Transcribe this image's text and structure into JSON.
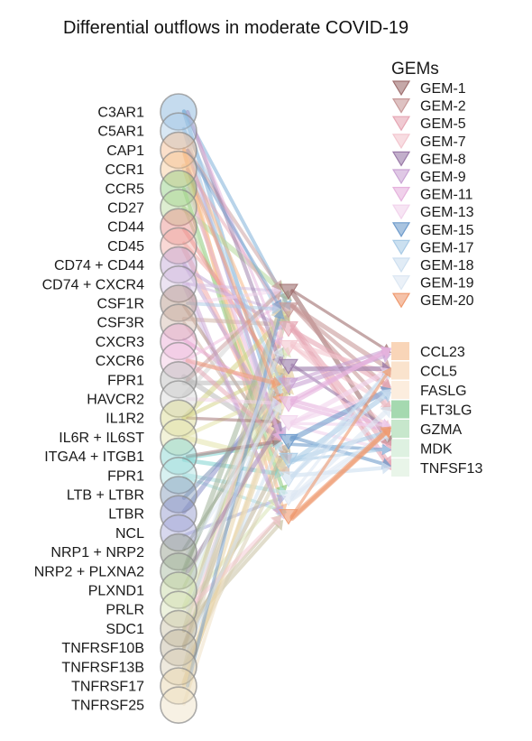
{
  "title": "Differential outflows in moderate COVID-19",
  "legend_title": "GEMs",
  "receptors": [
    {
      "name": "C3AR1",
      "color": "#7fb0d9"
    },
    {
      "name": "C5AR1",
      "color": "#a8c9e6"
    },
    {
      "name": "CAP1",
      "color": "#f5b889"
    },
    {
      "name": "CCR1",
      "color": "#f7c894"
    },
    {
      "name": "CCR5",
      "color": "#8ccb7c"
    },
    {
      "name": "CD27",
      "color": "#b5d99a"
    },
    {
      "name": "CD44",
      "color": "#e88a86"
    },
    {
      "name": "CD45",
      "color": "#f2aaa5"
    },
    {
      "name": "CD74 + CD44",
      "color": "#c0a5d4"
    },
    {
      "name": "CD74 + CXCR4",
      "color": "#d4c0e3"
    },
    {
      "name": "CSF1R",
      "color": "#b39283"
    },
    {
      "name": "CSF3R",
      "color": "#d1b5a8"
    },
    {
      "name": "CXCR3",
      "color": "#e9a6d2"
    },
    {
      "name": "CXCR6",
      "color": "#f2c3e0"
    },
    {
      "name": "FPR1",
      "color": "#b9b9b9"
    },
    {
      "name": "HAVCR2",
      "color": "#d6d6d6"
    },
    {
      "name": "IL1R2",
      "color": "#d6d68a"
    },
    {
      "name": "IL6R + IL6ST",
      "color": "#e3e3aa"
    },
    {
      "name": "ITGA4 + ITGB1",
      "color": "#7fd3cf"
    },
    {
      "name": "FPR1",
      "color": "#a9dfe0"
    },
    {
      "name": "LTB + LTBR",
      "color": "#7f96b8"
    },
    {
      "name": "LTBR",
      "color": "#8c92c9"
    },
    {
      "name": "NCL",
      "color": "#a6a9d9"
    },
    {
      "name": "NRP1 + NRP2",
      "color": "#8f9a86"
    },
    {
      "name": "NRP2 + PLXNA2",
      "color": "#a2b59a"
    },
    {
      "name": "PLXND1",
      "color": "#c3d49e"
    },
    {
      "name": "PRLR",
      "color": "#d8e3b5"
    },
    {
      "name": "SDC1",
      "color": "#c9c1a3"
    },
    {
      "name": "TNFRSF10B",
      "color": "#bfb49a"
    },
    {
      "name": "TNFRSF13B",
      "color": "#d9cfb4"
    },
    {
      "name": "TNFRSF17",
      "color": "#e7d3a8"
    },
    {
      "name": "TNFRSF25",
      "color": "#eee0c4"
    }
  ],
  "gems": [
    {
      "name": "GEM-1",
      "color": "#9e6e6e"
    },
    {
      "name": "GEM-2",
      "color": "#c89a9a"
    },
    {
      "name": "GEM-5",
      "color": "#e6a6b4"
    },
    {
      "name": "GEM-7",
      "color": "#f3c6cf"
    },
    {
      "name": "GEM-8",
      "color": "#9a7aa8"
    },
    {
      "name": "GEM-9",
      "color": "#c9a3d4"
    },
    {
      "name": "GEM-11",
      "color": "#e6b3dd"
    },
    {
      "name": "GEM-13",
      "color": "#f2d3ec"
    },
    {
      "name": "GEM-15",
      "color": "#6f9ccc"
    },
    {
      "name": "GEM-17",
      "color": "#a9cbe6"
    },
    {
      "name": "GEM-18",
      "color": "#cddff0"
    },
    {
      "name": "GEM-19",
      "color": "#dde8f3"
    },
    {
      "name": "GEM-20",
      "color": "#ef9a6f"
    }
  ],
  "ligands": [
    {
      "name": "CCL23",
      "color": "#f7caa6"
    },
    {
      "name": "CCL5",
      "color": "#f9dcc0"
    },
    {
      "name": "FASLG",
      "color": "#fbe9d6"
    },
    {
      "name": "FLT3LG",
      "color": "#8fcf9c"
    },
    {
      "name": "GZMA",
      "color": "#b9e1bf"
    },
    {
      "name": "MDK",
      "color": "#d6eed9"
    },
    {
      "name": "TNFSF13",
      "color": "#e3f2e4"
    }
  ]
}
